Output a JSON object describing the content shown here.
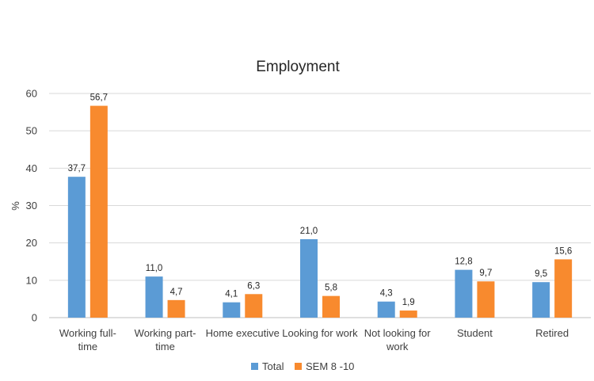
{
  "chart_data": {
    "type": "bar",
    "title": "Employment",
    "xlabel": "",
    "ylabel": "%",
    "ylim": [
      0,
      60
    ],
    "yticks": [
      "0",
      "10",
      "20",
      "30",
      "40",
      "50",
      "60"
    ],
    "categories": [
      [
        "Working full-",
        "time"
      ],
      [
        "Working part-",
        "time"
      ],
      [
        "Home executive"
      ],
      [
        "Looking for work"
      ],
      [
        "Not looking for",
        "work"
      ],
      [
        "Student"
      ],
      [
        "Retired"
      ]
    ],
    "series": [
      {
        "name": "Total",
        "color": "#5B9BD5",
        "values": [
          37.7,
          11.0,
          4.1,
          21.0,
          4.3,
          12.8,
          9.5
        ],
        "labels": [
          "37,7",
          "11,0",
          "4,1",
          "21,0",
          "4,3",
          "12,8",
          "9,5"
        ]
      },
      {
        "name": "SEM 8 -10",
        "color": "#F88A2E",
        "values": [
          56.7,
          4.7,
          6.3,
          5.8,
          1.9,
          9.7,
          15.6
        ],
        "labels": [
          "56,7",
          "4,7",
          "6,3",
          "5,8",
          "1,9",
          "9,7",
          "15,6"
        ]
      }
    ],
    "grid": true,
    "legend": "bottom"
  }
}
